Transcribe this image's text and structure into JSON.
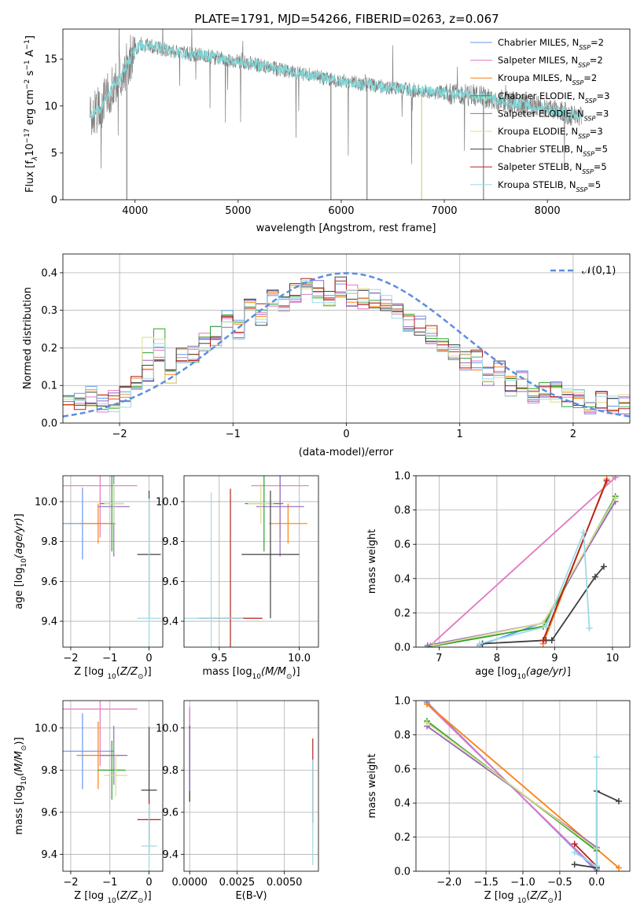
{
  "chart_data": [
    {
      "type": "line",
      "title": "PLATE=1791, MJD=54266, FIBERID=0263, z=0.067",
      "xlabel": "wavelength [Angstrom, rest frame]",
      "ylabel": "Flux [f",
      "ylabel_parts": [
        "Flux [f",
        "λ",
        "10",
        "−17",
        " erg cm",
        "−2",
        " s",
        "−1",
        " A",
        "−1",
        "]"
      ],
      "xlim": [
        3300,
        8800
      ],
      "ylim": [
        0,
        18.2
      ],
      "xticks": [
        "4000",
        "5000",
        "6000",
        "7000",
        "8000"
      ],
      "yticks": [
        "0",
        "5",
        "10",
        "15"
      ],
      "legend_placement": "top-right",
      "series": [
        {
          "name": "Chabrier MILES",
          "nssp": "2",
          "color": "#6495ed"
        },
        {
          "name": "Salpeter MILES",
          "nssp": "2",
          "color": "#e377c2"
        },
        {
          "name": "Kroupa MILES",
          "nssp": "2",
          "color": "#ff7f0e"
        },
        {
          "name": "Chabrier ELODIE",
          "nssp": "3",
          "color": "#2ca02c"
        },
        {
          "name": "Salpeter ELODIE",
          "nssp": "3",
          "color": "#9467bd"
        },
        {
          "name": "Kroupa ELODIE",
          "nssp": "3",
          "color": "#dbdb8d"
        },
        {
          "name": "Chabrier STELIB",
          "nssp": "5",
          "color": "#404040"
        },
        {
          "name": "Salpeter STELIB",
          "nssp": "5",
          "color": "#b22222"
        },
        {
          "name": "Kroupa STELIB",
          "nssp": "5",
          "color": "#9edae5"
        }
      ],
      "data_color": "#808080",
      "model_color": "#7fd8d8",
      "continuum": {
        "x": [
          3550,
          3650,
          3750,
          3850,
          3950,
          4050,
          4150,
          4300,
          4500,
          4700,
          4900,
          5100,
          5300,
          5500,
          5700,
          5900,
          6100,
          6300,
          6500,
          6700,
          6900,
          7100,
          7300,
          7500,
          7700,
          7900,
          8100,
          8300
        ],
        "y": [
          9.0,
          9.6,
          11.5,
          13.0,
          15.0,
          16.6,
          16.4,
          16.0,
          15.6,
          15.3,
          14.9,
          14.6,
          14.1,
          13.7,
          13.3,
          12.8,
          12.5,
          12.2,
          11.9,
          11.7,
          11.5,
          11.3,
          11.1,
          10.7,
          10.3,
          9.9,
          9.4,
          8.9
        ]
      }
    },
    {
      "type": "line",
      "title": "",
      "xlabel": "(data-model)/error",
      "ylabel": "Normed distribution",
      "xlim": [
        -2.5,
        2.5
      ],
      "ylim": [
        0,
        0.45
      ],
      "xticks": [
        "−2",
        "−1",
        "0",
        "1",
        "2"
      ],
      "yticks": [
        "0.0",
        "0.1",
        "0.2",
        "0.3",
        "0.4"
      ],
      "grid": true,
      "legend_placement": "top-right",
      "legend": "𝒩(0,1)",
      "bins": [
        -2.45,
        -2.35,
        -2.25,
        -2.15,
        -2.05,
        -1.95,
        -1.85,
        -1.75,
        -1.65,
        -1.55,
        -1.45,
        -1.35,
        -1.25,
        -1.15,
        -1.05,
        -0.95,
        -0.85,
        -0.75,
        -0.65,
        -0.55,
        -0.45,
        -0.35,
        -0.25,
        -0.15,
        -0.05,
        0.05,
        0.15,
        0.25,
        0.35,
        0.45,
        0.55,
        0.65,
        0.75,
        0.85,
        0.95,
        1.05,
        1.15,
        1.25,
        1.35,
        1.45,
        1.55,
        1.65,
        1.75,
        1.85,
        1.95,
        2.05,
        2.15,
        2.25,
        2.35,
        2.45
      ],
      "hist_base": [
        0.05,
        0.06,
        0.07,
        0.05,
        0.06,
        0.07,
        0.1,
        0.14,
        0.19,
        0.12,
        0.17,
        0.18,
        0.21,
        0.23,
        0.27,
        0.25,
        0.32,
        0.29,
        0.33,
        0.31,
        0.35,
        0.37,
        0.35,
        0.34,
        0.36,
        0.34,
        0.33,
        0.33,
        0.31,
        0.29,
        0.27,
        0.26,
        0.24,
        0.21,
        0.18,
        0.16,
        0.17,
        0.13,
        0.14,
        0.1,
        0.11,
        0.08,
        0.09,
        0.08,
        0.07,
        0.06,
        0.05,
        0.06,
        0.05,
        0.05
      ],
      "normal_curve": {
        "mu": 0,
        "sigma": 1
      }
    },
    {
      "type": "scatter",
      "xlabel": "Z [log",
      "xlabel_sub": "10",
      "xlabel_tail": "(Z/Z",
      "ylabel": "age  [log",
      "ylabel_tail": "(age/yr)]",
      "xlim": [
        -2.2,
        0.35
      ],
      "ylim": [
        9.27,
        10.13
      ],
      "xticks": [
        "−2",
        "−1",
        "0"
      ],
      "yticks": [
        "9.4",
        "9.6",
        "9.8",
        "10.0"
      ],
      "points": [
        {
          "x": -1.7,
          "y": 9.89,
          "xerr": 0.8,
          "yerr": 0.18,
          "series": 0
        },
        {
          "x": -1.25,
          "y": 10.08,
          "xerr": 0.95,
          "yerr": 0.26,
          "series": 1
        },
        {
          "x": -1.3,
          "y": 9.89,
          "xerr": 0.45,
          "yerr": 0.1,
          "series": 2
        },
        {
          "x": -0.95,
          "y": 9.99,
          "xerr": 0.3,
          "yerr": 0.24,
          "series": 3
        },
        {
          "x": -0.9,
          "y": 9.975,
          "xerr": 0.4,
          "yerr": 0.25,
          "series": 4
        },
        {
          "x": -0.9,
          "y": 9.99,
          "xerr": 0.25,
          "yerr": 0.1,
          "series": 5
        },
        {
          "x": 0.0,
          "y": 9.735,
          "xerr": 0.3,
          "yerr": 0.32,
          "series": 6
        },
        {
          "x": 0.0,
          "y": 9.415,
          "xerr": 0.3,
          "yerr": 0.6,
          "series": 8
        }
      ]
    },
    {
      "type": "scatter",
      "xlabel": "mass [log",
      "xlabel_tail": "(M/M",
      "xlim": [
        9.28,
        10.12
      ],
      "ylim": [
        9.27,
        10.13
      ],
      "xticks": [
        "9.5",
        "10.0"
      ],
      "yticks": [
        "9.4",
        "9.6",
        "9.8",
        "10.0"
      ],
      "points": [
        {
          "x": 9.88,
          "y": 10.08,
          "xerr": 0.18,
          "yerr": 0.26,
          "series": 1
        },
        {
          "x": 9.93,
          "y": 9.89,
          "xerr": 0.12,
          "yerr": 0.1,
          "series": 2
        },
        {
          "x": 9.78,
          "y": 9.99,
          "xerr": 0.12,
          "yerr": 0.24,
          "series": 3
        },
        {
          "x": 9.88,
          "y": 9.975,
          "xerr": 0.15,
          "yerr": 0.25,
          "series": 4
        },
        {
          "x": 9.76,
          "y": 9.99,
          "xerr": 0.08,
          "yerr": 0.1,
          "series": 5
        },
        {
          "x": 9.82,
          "y": 9.735,
          "xerr": 0.18,
          "yerr": 0.32,
          "series": 6
        },
        {
          "x": 9.57,
          "y": 9.415,
          "xerr": 0.2,
          "yerr": 0.65,
          "series": 7
        },
        {
          "x": 9.45,
          "y": 9.415,
          "xerr": 0.2,
          "yerr": 0.63,
          "series": 8
        }
      ]
    },
    {
      "type": "line",
      "xlabel": "age  [log",
      "xlabel_tail": "(age/yr)]",
      "ylabel": "mass weight",
      "xlim": [
        6.6,
        10.3
      ],
      "ylim": [
        0,
        1.0
      ],
      "xticks": [
        "7",
        "8",
        "9",
        "10"
      ],
      "yticks": [
        "0.0",
        "0.2",
        "0.4",
        "0.6",
        "0.8",
        "1.0"
      ],
      "grid": true,
      "series": [
        {
          "series": 0,
          "x": [
            7.7,
            8.85,
            10.05
          ],
          "y": [
            0.01,
            0.15,
            0.87
          ]
        },
        {
          "series": 1,
          "x": [
            6.85,
            10.05
          ],
          "y": [
            0.01,
            0.99
          ]
        },
        {
          "series": 2,
          "x": [
            8.8,
            9.9
          ],
          "y": [
            0.02,
            0.98
          ]
        },
        {
          "series": 3,
          "x": [
            6.8,
            8.8,
            10.05
          ],
          "y": [
            0.0,
            0.12,
            0.88
          ]
        },
        {
          "series": 4,
          "x": [
            6.8,
            8.8,
            10.05
          ],
          "y": [
            0.01,
            0.14,
            0.85
          ]
        },
        {
          "series": 5,
          "x": [
            6.9,
            8.8,
            10.05
          ],
          "y": [
            0.01,
            0.14,
            0.87
          ]
        },
        {
          "series": 6,
          "x": [
            7.75,
            8.85,
            8.95,
            9.7,
            9.85
          ],
          "y": [
            0.02,
            0.04,
            0.04,
            0.41,
            0.47
          ]
        },
        {
          "series": 7,
          "x": [
            8.8,
            9.9
          ],
          "y": [
            0.04,
            0.97
          ]
        },
        {
          "series": 8,
          "x": [
            7.7,
            8.85,
            9.5,
            9.6
          ],
          "y": [
            0.02,
            0.12,
            0.67,
            0.11
          ]
        }
      ]
    },
    {
      "type": "scatter",
      "xlabel": "Z [log",
      "xlabel_tail": "(Z/Z",
      "ylabel": "mass [log",
      "ylabel_tail": "(M/M",
      "xlim": [
        -2.2,
        0.35
      ],
      "ylim": [
        9.32,
        10.13
      ],
      "xticks": [
        "−2",
        "−1",
        "0"
      ],
      "yticks": [
        "9.4",
        "9.6",
        "9.8",
        "10.0"
      ],
      "points": [
        {
          "x": -1.7,
          "y": 9.89,
          "xerr": 0.8,
          "yerr": 0.18,
          "series": 0
        },
        {
          "x": -1.25,
          "y": 10.09,
          "xerr": 0.95,
          "yerr": 0.27,
          "series": 1
        },
        {
          "x": -1.3,
          "y": 9.87,
          "xerr": 0.55,
          "yerr": 0.16,
          "series": 2
        },
        {
          "x": -0.95,
          "y": 9.8,
          "xerr": 0.35,
          "yerr": 0.14,
          "series": 3
        },
        {
          "x": -0.9,
          "y": 9.87,
          "xerr": 0.35,
          "yerr": 0.14,
          "series": 4
        },
        {
          "x": -0.85,
          "y": 9.775,
          "xerr": 0.3,
          "yerr": 0.1,
          "series": 5
        },
        {
          "x": 0.0,
          "y": 9.705,
          "xerr": 0.2,
          "yerr": 0.3,
          "series": 6
        },
        {
          "x": 0.0,
          "y": 9.565,
          "xerr": 0.3,
          "yerr": 0.1,
          "series": 7
        },
        {
          "x": 0.0,
          "y": 9.44,
          "xerr": 0.2,
          "yerr": 0.2,
          "series": 8
        }
      ]
    },
    {
      "type": "scatter",
      "xlabel": "E(B-V)",
      "xlim": [
        -0.0003,
        0.0068
      ],
      "ylim": [
        9.32,
        10.13
      ],
      "xticks": [
        "0.0000",
        "0.0025",
        "0.0050"
      ],
      "yticks": [
        "9.4",
        "9.6",
        "9.8",
        "10.0"
      ],
      "points": [
        {
          "x": 0.0,
          "y": 9.89,
          "xerr": 0,
          "yerr": 0.2,
          "series": 0
        },
        {
          "x": 0.0,
          "y": 10.0,
          "xerr": 0,
          "yerr": 0.1,
          "series": 1
        },
        {
          "x": 0.0,
          "y": 9.8,
          "xerr": 0,
          "yerr": 0.15,
          "series": 3
        },
        {
          "x": 0.0,
          "y": 9.83,
          "xerr": 0,
          "yerr": 0.18,
          "series": 6
        },
        {
          "x": 0.0,
          "y": 9.85,
          "xerr": 0,
          "yerr": 0.15,
          "series": 4
        },
        {
          "x": 0.0065,
          "y": 9.75,
          "xerr": 0,
          "yerr": 0.2,
          "series": 7
        },
        {
          "x": 0.0065,
          "y": 9.6,
          "xerr": 0,
          "yerr": 0.25,
          "series": 8
        }
      ]
    },
    {
      "type": "line",
      "xlabel": "Z [log",
      "xlabel_tail": "(Z/Z",
      "ylabel": "mass weight",
      "xlim": [
        -2.45,
        0.45
      ],
      "ylim": [
        0,
        1.0
      ],
      "xticks": [
        "−2.0",
        "−1.5",
        "−1.0",
        "−0.5",
        "0.0"
      ],
      "yticks": [
        "0.0",
        "0.2",
        "0.4",
        "0.6",
        "0.8",
        "1.0"
      ],
      "grid": true,
      "series": [
        {
          "series": 0,
          "x": [
            -2.3,
            0.0
          ],
          "y": [
            0.99,
            0.0
          ]
        },
        {
          "series": 1,
          "x": [
            -2.3,
            0.0
          ],
          "y": [
            0.98,
            0.01
          ]
        },
        {
          "series": 2,
          "x": [
            -2.3,
            0.3
          ],
          "y": [
            0.98,
            0.02
          ]
        },
        {
          "series": 3,
          "x": [
            -2.3,
            0.0
          ],
          "y": [
            0.88,
            0.12
          ]
        },
        {
          "series": 4,
          "x": [
            -2.3,
            0.0
          ],
          "y": [
            0.85,
            0.14
          ]
        },
        {
          "series": 5,
          "x": [
            -2.3,
            0.0
          ],
          "y": [
            0.87,
            0.13
          ]
        },
        {
          "series": 6,
          "x": [
            -0.3,
            0.0,
            0.0,
            0.3
          ],
          "y": [
            0.04,
            0.02,
            0.47,
            0.41
          ]
        },
        {
          "series": 7,
          "x": [
            -0.3,
            0.0
          ],
          "y": [
            0.16,
            0.03
          ]
        },
        {
          "series": 8,
          "x": [
            -0.3,
            0.0,
            0.0
          ],
          "y": [
            0.11,
            0.03,
            0.67
          ]
        }
      ]
    }
  ]
}
